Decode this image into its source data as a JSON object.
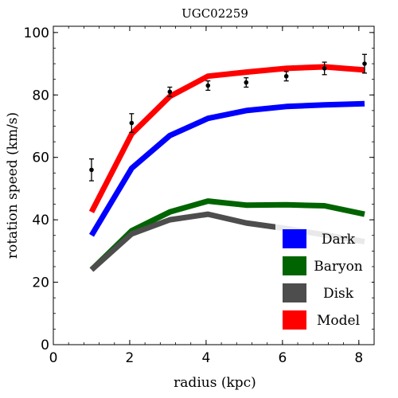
{
  "chart_data": {
    "type": "line",
    "title": "UGC02259",
    "xlabel": "radius (kpc)",
    "ylabel": "rotation speed (km/s)",
    "xlim": [
      0,
      8.4
    ],
    "ylim": [
      0,
      102
    ],
    "x_ticks": [
      0,
      2,
      4,
      6,
      8
    ],
    "y_ticks": [
      0,
      20,
      40,
      60,
      80,
      100
    ],
    "x_tick_labels": [
      "0",
      "2",
      "4",
      "6",
      "8"
    ],
    "y_tick_labels": [
      "0",
      "20",
      "40",
      "60",
      "80",
      "100"
    ],
    "grid": false,
    "legend_position": "bottom-right",
    "series": [
      {
        "name": "Dark",
        "color": "#0000ff",
        "x": [
          1.0,
          2.05,
          3.05,
          4.05,
          5.05,
          6.1,
          7.1,
          8.15
        ],
        "y": [
          35,
          56.5,
          67,
          72.5,
          75,
          76.3,
          76.8,
          77.2
        ]
      },
      {
        "name": "Baryon",
        "color": "#006400",
        "x": [
          1.0,
          2.05,
          3.05,
          4.05,
          5.05,
          6.1,
          7.1,
          8.15
        ],
        "y": [
          24,
          36.5,
          42.5,
          46,
          44.7,
          44.8,
          44.5,
          41.8
        ]
      },
      {
        "name": "Disk",
        "color": "#4d4d4d",
        "x": [
          1.0,
          2.05,
          3.05,
          4.05,
          5.05,
          6.1,
          7.1,
          8.15
        ],
        "y": [
          24,
          35.5,
          40,
          41.8,
          39,
          37.2,
          35.2,
          33
        ]
      },
      {
        "name": "Model",
        "color": "#ff0000",
        "x": [
          1.0,
          2.05,
          3.05,
          4.05,
          5.05,
          6.1,
          7.1,
          8.15
        ],
        "y": [
          42.5,
          67.5,
          79.5,
          86,
          87.3,
          88.5,
          89,
          88
        ]
      }
    ],
    "observations": {
      "x": [
        1.0,
        2.05,
        3.05,
        4.05,
        5.05,
        6.1,
        7.1,
        8.15
      ],
      "y": [
        56,
        71,
        81,
        83,
        84,
        86,
        88.5,
        90
      ],
      "err": [
        3.5,
        3,
        1.5,
        1.5,
        1.5,
        1.5,
        2,
        3
      ]
    }
  }
}
